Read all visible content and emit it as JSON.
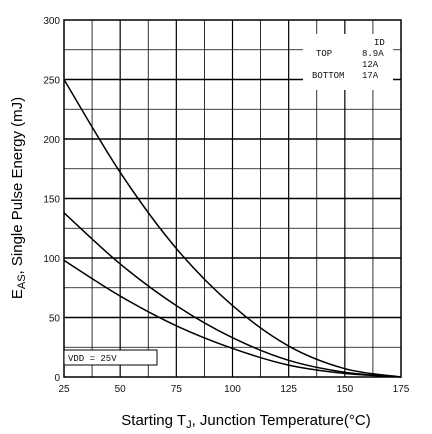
{
  "chart_data": {
    "type": "line",
    "xlabel": "Starting T",
    "xlabel_sub": "J",
    "xlabel_rest": ", Junction Temperature(°C)",
    "ylabel": "E",
    "ylabel_sub": "AS",
    "ylabel_rest": ", Single Pulse Energy (mJ)",
    "xlim": [
      25,
      175
    ],
    "ylim": [
      0,
      300
    ],
    "x_ticks": [
      "25",
      "50",
      "75",
      "100",
      "125",
      "150",
      "175"
    ],
    "y_ticks": [
      "0",
      "50",
      "100",
      "150",
      "200",
      "250",
      "300"
    ],
    "grid": true,
    "legend": {
      "header": "ID",
      "rows": [
        {
          "label": "TOP",
          "value": "8.9A"
        },
        {
          "label": "",
          "value": "12A"
        },
        {
          "label": "BOTTOM",
          "value": "17A"
        }
      ]
    },
    "condition": "VDD = 25V",
    "series": [
      {
        "x": [
          25,
          50,
          75,
          100,
          125,
          150,
          175
        ],
        "values": [
          250,
          172,
          108,
          60,
          26,
          7,
          0
        ]
      },
      {
        "x": [
          25,
          50,
          75,
          100,
          125,
          150,
          175
        ],
        "values": [
          138,
          95,
          60,
          33,
          14,
          4,
          0
        ]
      },
      {
        "x": [
          25,
          50,
          75,
          100,
          125,
          150,
          175
        ],
        "values": [
          98,
          68,
          43,
          24,
          10,
          3,
          0
        ]
      }
    ],
    "line_color": "#000000"
  }
}
